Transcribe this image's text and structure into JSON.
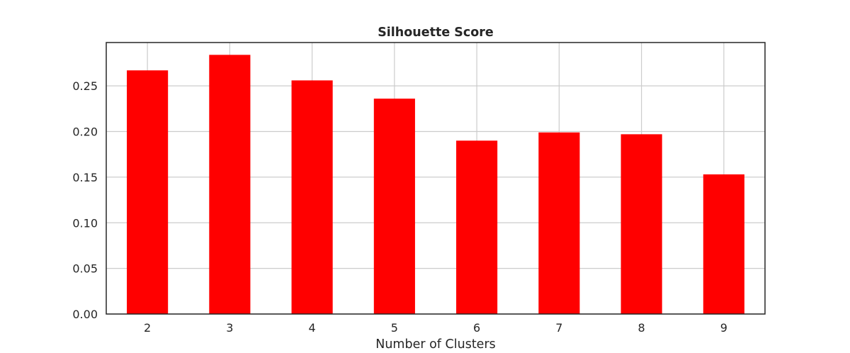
{
  "chart_data": {
    "type": "bar",
    "title": "Silhouette Score",
    "xlabel": "Number of Clusters",
    "ylabel": "",
    "categories": [
      "2",
      "3",
      "4",
      "5",
      "6",
      "7",
      "8",
      "9"
    ],
    "values": [
      0.267,
      0.284,
      0.256,
      0.236,
      0.19,
      0.199,
      0.197,
      0.153
    ],
    "ylim": [
      0,
      0.2975
    ],
    "yticks": [
      0.0,
      0.05,
      0.1,
      0.15,
      0.2,
      0.25
    ],
    "ytick_labels": [
      "0.00",
      "0.05",
      "0.10",
      "0.15",
      "0.20",
      "0.25"
    ],
    "grid": true,
    "colors": {
      "bar": "#ff0000",
      "grid": "#cccccc",
      "axis": "#262626",
      "text": "#262626"
    }
  }
}
